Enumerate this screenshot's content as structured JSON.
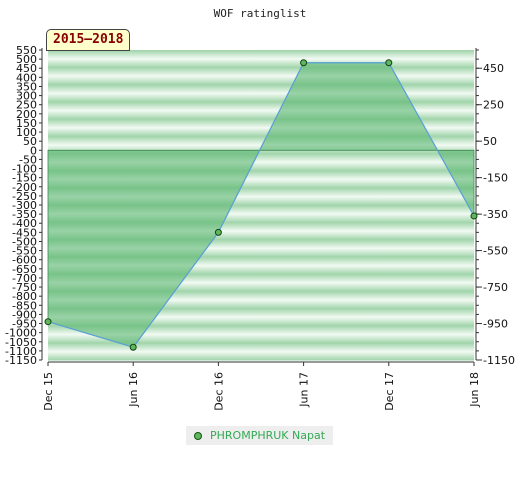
{
  "chart_data": {
    "type": "area",
    "title": "WOF ratinglist",
    "period_label": "2015–2018",
    "categories": [
      "Dec 15",
      "Jun 16",
      "Dec 16",
      "Jun 17",
      "Dec 17",
      "Jun 18"
    ],
    "series": [
      {
        "name": "PHROMPHRUK Napat",
        "values": [
          -940,
          -1080,
          -450,
          480,
          480,
          -360
        ]
      }
    ],
    "ylim": [
      -1150,
      550
    ],
    "y_ticks_left": [
      550,
      500,
      450,
      400,
      350,
      300,
      250,
      200,
      150,
      100,
      50,
      0,
      -50,
      -100,
      -150,
      -200,
      -250,
      -300,
      -350,
      -400,
      -450,
      -500,
      -550,
      -600,
      -650,
      -700,
      -750,
      -800,
      -850,
      -900,
      -950,
      -1000,
      -1050,
      -1100,
      -1150
    ],
    "y_ticks_right": [
      450,
      250,
      50,
      -150,
      -350,
      -550,
      -750,
      -950,
      -1150
    ],
    "colors": {
      "area_fill": "#5db873",
      "line": "#5aa0d8",
      "marker_fill": "#5eb65e",
      "marker_stroke": "#114411",
      "stripe_dark": "#9fd4a9",
      "stripe_light": "#f2faf3",
      "legend_text": "#33aa55"
    },
    "legend_position": "bottom"
  }
}
